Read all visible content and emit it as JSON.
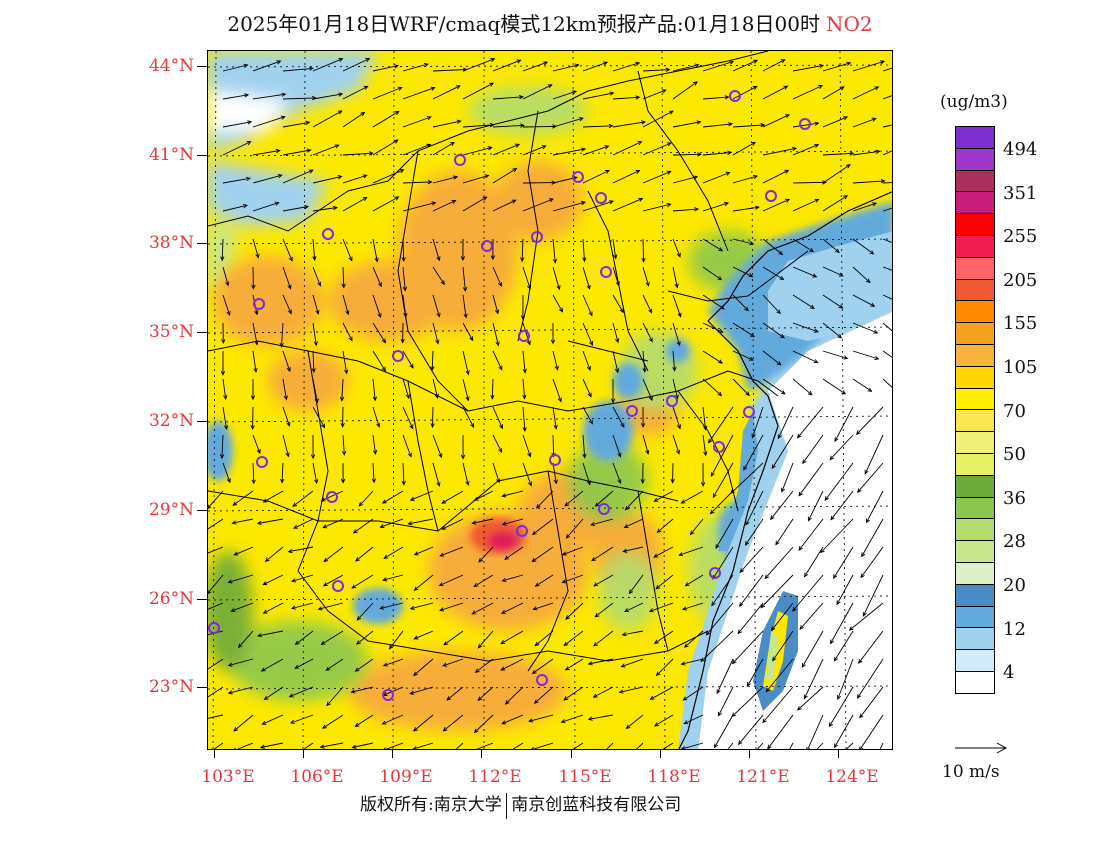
{
  "title": {
    "text": "2025年01月18日WRF/cmaq模式12km预报产品:01月18日00时",
    "pollutant": "NO2"
  },
  "colors": {
    "label_red": "#e8373a",
    "site_marker": "#7a2be0",
    "background_pollution": "#fde800",
    "elevated_pollution": "#f7aa3c",
    "hotspot": "#e01e5a",
    "low_pollution": "#5aa4d8",
    "clean": "#ffffff"
  },
  "axes": {
    "lat_labels": [
      "44°N",
      "41°N",
      "38°N",
      "35°N",
      "32°N",
      "29°N",
      "26°N",
      "23°N"
    ],
    "lon_labels": [
      "103°E",
      "106°E",
      "109°E",
      "112°E",
      "115°E",
      "118°E",
      "121°E",
      "124°E"
    ]
  },
  "legend": {
    "unit": "(ug/m3)",
    "levels": [
      {
        "label": "494",
        "color": "#7b2fd0"
      },
      {
        "label": "",
        "color": "#9b38c8"
      },
      {
        "label": "351",
        "color": "#a8305a"
      },
      {
        "label": "",
        "color": "#c81e7a"
      },
      {
        "label": "255",
        "color": "#ff0000"
      },
      {
        "label": "",
        "color": "#f01e50"
      },
      {
        "label": "205",
        "color": "#ff6464"
      },
      {
        "label": "",
        "color": "#f05a32"
      },
      {
        "label": "155",
        "color": "#ff8c00"
      },
      {
        "label": "",
        "color": "#f5a01e"
      },
      {
        "label": "105",
        "color": "#f7b43c"
      },
      {
        "label": "",
        "color": "#ffd700"
      },
      {
        "label": "70",
        "color": "#ffee00"
      },
      {
        "label": "",
        "color": "#fae650"
      },
      {
        "label": "50",
        "color": "#f0f078"
      },
      {
        "label": "",
        "color": "#e6f064"
      },
      {
        "label": "36",
        "color": "#6eaa3c"
      },
      {
        "label": "",
        "color": "#8cc850"
      },
      {
        "label": "28",
        "color": "#b4dc6e"
      },
      {
        "label": "",
        "color": "#c8e68c"
      },
      {
        "label": "20",
        "color": "#dcf0c8"
      },
      {
        "label": "",
        "color": "#4a8cc8"
      },
      {
        "label": "12",
        "color": "#64aadc"
      },
      {
        "label": "",
        "color": "#a0d2f0"
      },
      {
        "label": "4",
        "color": "#d4ecfa"
      },
      {
        "label": "",
        "color": "#ffffff"
      }
    ]
  },
  "wind_reference": {
    "label": "10 m/s"
  },
  "copyright": {
    "left": "版权所有:南京大学",
    "right": "南京创蓝科技有限公司"
  }
}
